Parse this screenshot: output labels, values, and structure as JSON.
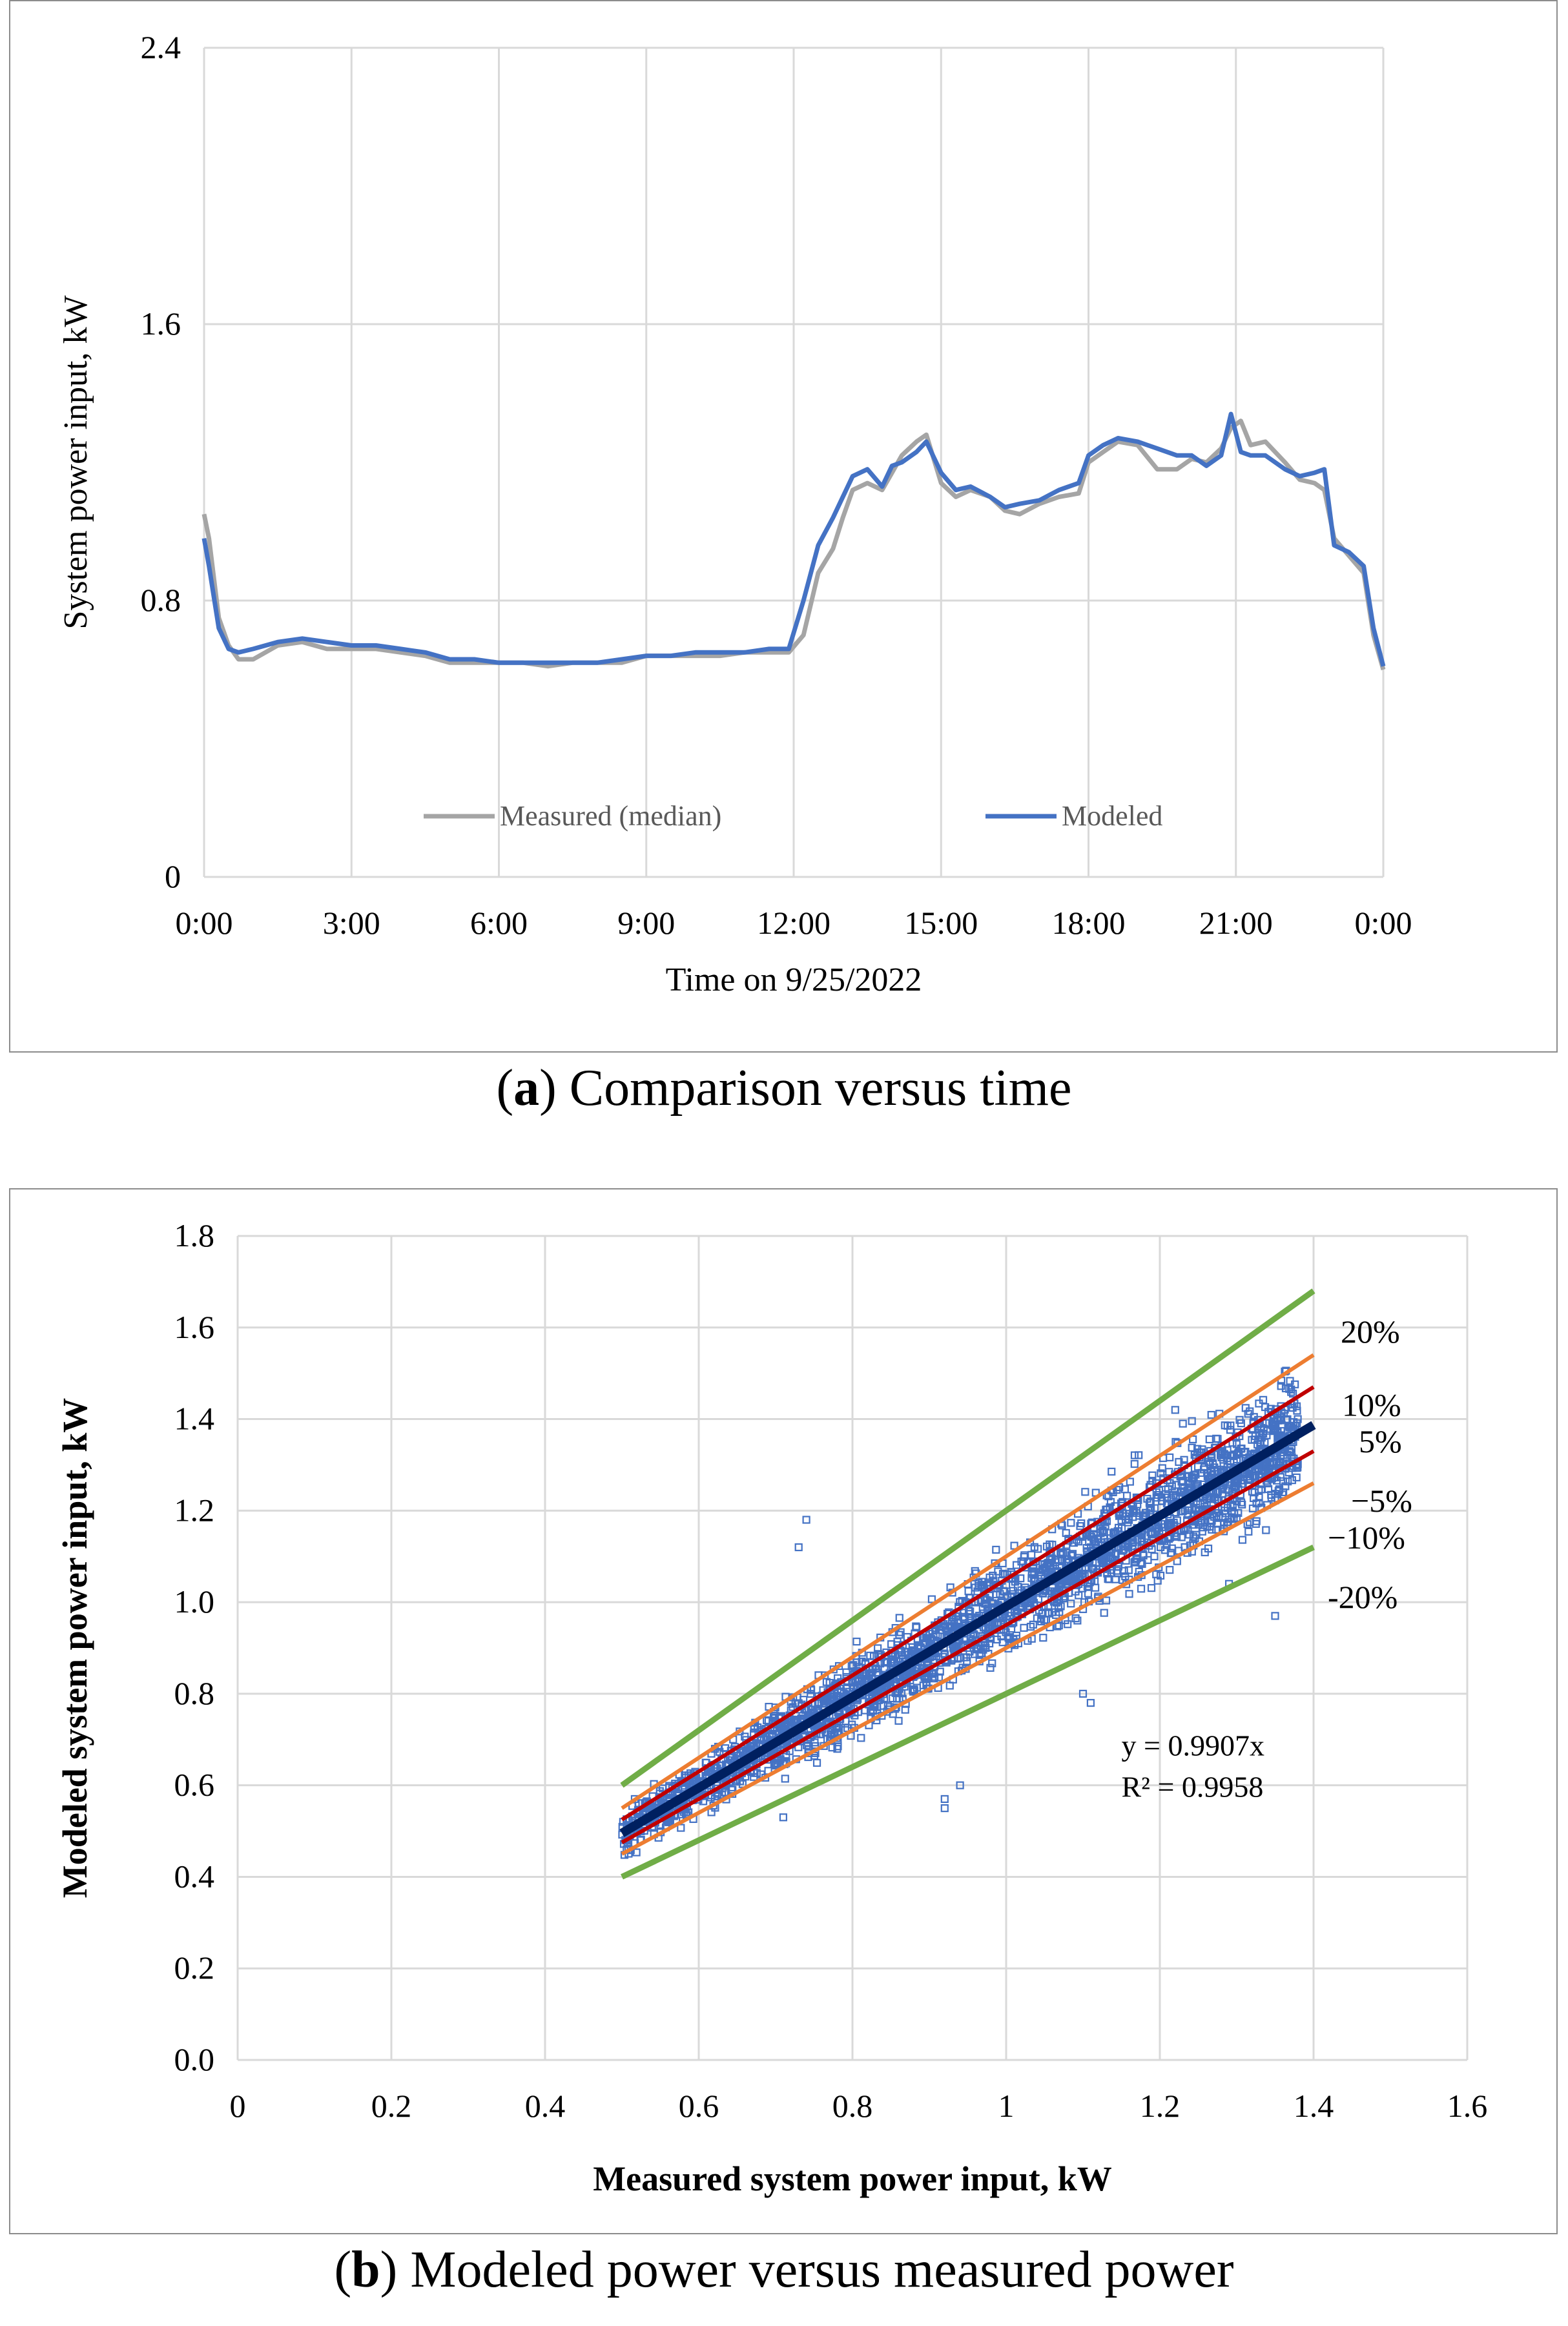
{
  "chart_data": [
    {
      "type": "line",
      "ylabel": "System power input, kW",
      "xlabel": "Time on 9/25/2022",
      "ylim": [
        0,
        2.4
      ],
      "yticks": [
        "0",
        "0.8",
        "1.6",
        "2.4"
      ],
      "xticks": [
        "0:00",
        "3:00",
        "6:00",
        "9:00",
        "12:00",
        "15:00",
        "18:00",
        "21:00",
        "0:00"
      ],
      "grid": true,
      "legend_position": "bottom-center",
      "x_hours": [
        0,
        0.1,
        0.3,
        0.5,
        0.7,
        1.0,
        1.5,
        2.0,
        2.5,
        3.0,
        3.5,
        4.0,
        4.5,
        5.0,
        5.5,
        6.0,
        6.5,
        7.0,
        7.5,
        8.0,
        8.5,
        9.0,
        9.5,
        10.0,
        10.5,
        11.0,
        11.5,
        11.9,
        12.2,
        12.5,
        12.8,
        13.0,
        13.2,
        13.5,
        13.8,
        14.0,
        14.2,
        14.5,
        14.7,
        15.0,
        15.3,
        15.6,
        16.0,
        16.3,
        16.6,
        17.0,
        17.4,
        17.8,
        18.0,
        18.3,
        18.6,
        19.0,
        19.4,
        19.8,
        20.1,
        20.4,
        20.7,
        20.9,
        21.1,
        21.3,
        21.6,
        22.0,
        22.3,
        22.6,
        22.8,
        23.0,
        23.3,
        23.6,
        23.8,
        24.0
      ],
      "series": [
        {
          "name": "Measured (median)",
          "color": "#a5a5a5",
          "values": [
            1.05,
            0.98,
            0.75,
            0.67,
            0.63,
            0.63,
            0.67,
            0.68,
            0.66,
            0.66,
            0.66,
            0.65,
            0.64,
            0.62,
            0.62,
            0.62,
            0.62,
            0.61,
            0.62,
            0.62,
            0.62,
            0.64,
            0.64,
            0.64,
            0.64,
            0.65,
            0.65,
            0.65,
            0.7,
            0.88,
            0.95,
            1.04,
            1.12,
            1.14,
            1.12,
            1.17,
            1.22,
            1.26,
            1.28,
            1.14,
            1.1,
            1.12,
            1.1,
            1.06,
            1.05,
            1.08,
            1.1,
            1.11,
            1.2,
            1.23,
            1.26,
            1.25,
            1.18,
            1.18,
            1.21,
            1.2,
            1.24,
            1.3,
            1.32,
            1.25,
            1.26,
            1.2,
            1.15,
            1.14,
            1.12,
            0.98,
            0.93,
            0.88,
            0.7,
            0.6
          ]
        },
        {
          "name": "Modeled",
          "color": "#4472c4",
          "values": [
            0.98,
            0.9,
            0.72,
            0.66,
            0.65,
            0.66,
            0.68,
            0.69,
            0.68,
            0.67,
            0.67,
            0.66,
            0.65,
            0.63,
            0.63,
            0.62,
            0.62,
            0.62,
            0.62,
            0.62,
            0.63,
            0.64,
            0.64,
            0.65,
            0.65,
            0.65,
            0.66,
            0.66,
            0.8,
            0.96,
            1.04,
            1.1,
            1.16,
            1.18,
            1.13,
            1.19,
            1.2,
            1.23,
            1.26,
            1.17,
            1.12,
            1.13,
            1.1,
            1.07,
            1.08,
            1.09,
            1.12,
            1.14,
            1.22,
            1.25,
            1.27,
            1.26,
            1.24,
            1.22,
            1.22,
            1.19,
            1.22,
            1.34,
            1.23,
            1.22,
            1.22,
            1.18,
            1.16,
            1.17,
            1.18,
            0.96,
            0.94,
            0.9,
            0.72,
            0.61
          ]
        }
      ]
    },
    {
      "type": "scatter",
      "xlabel": "Measured system power input, kW",
      "ylabel": "Modeled system power input, kW",
      "xlim": [
        0,
        1.6
      ],
      "ylim": [
        0,
        1.8
      ],
      "xticks": [
        "0",
        "0.2",
        "0.4",
        "0.6",
        "0.8",
        "1",
        "1.2",
        "1.4",
        "1.6"
      ],
      "yticks": [
        "0.0",
        "0.2",
        "0.4",
        "0.6",
        "0.8",
        "1.0",
        "1.2",
        "1.4",
        "1.6",
        "1.8"
      ],
      "grid": true,
      "points_color": "#4472c4",
      "trendline": {
        "slope": 0.9907,
        "color": "#002060",
        "x_range": [
          0.5,
          1.4
        ],
        "equation": "y = 0.9907x",
        "r2": "R² = 0.9958"
      },
      "bands": [
        {
          "label": "20%",
          "factor": 1.2,
          "color": "#70ad47"
        },
        {
          "label": "10%",
          "factor": 1.1,
          "color": "#ed7d31"
        },
        {
          "label": "5%",
          "factor": 1.05,
          "color": "#c00000"
        },
        {
          "label": "−5%",
          "factor": 0.95,
          "color": "#c00000"
        },
        {
          "label": "−10%",
          "factor": 0.9,
          "color": "#ed7d31"
        },
        {
          "label": "-20%",
          "factor": 0.8,
          "color": "#70ad47"
        }
      ],
      "band_x_range": [
        0.5,
        1.4
      ],
      "point_cloud": {
        "x_range": [
          0.5,
          1.38
        ],
        "relative_spread": 0.09,
        "count": 2600
      },
      "outliers": [
        [
          0.73,
          1.12
        ],
        [
          0.74,
          1.18
        ],
        [
          0.92,
          0.55
        ],
        [
          0.92,
          0.57
        ],
        [
          0.71,
          0.53
        ],
        [
          1.35,
          0.97
        ],
        [
          1.1,
          0.8
        ],
        [
          1.11,
          0.78
        ],
        [
          1.29,
          1.04
        ],
        [
          1.23,
          1.39
        ],
        [
          1.22,
          1.42
        ],
        [
          0.94,
          0.6
        ]
      ]
    }
  ],
  "captions": {
    "a": {
      "letter": "a",
      "text": " Comparison versus time"
    },
    "b": {
      "letter": "b",
      "text": " Modeled power versus measured power"
    }
  }
}
